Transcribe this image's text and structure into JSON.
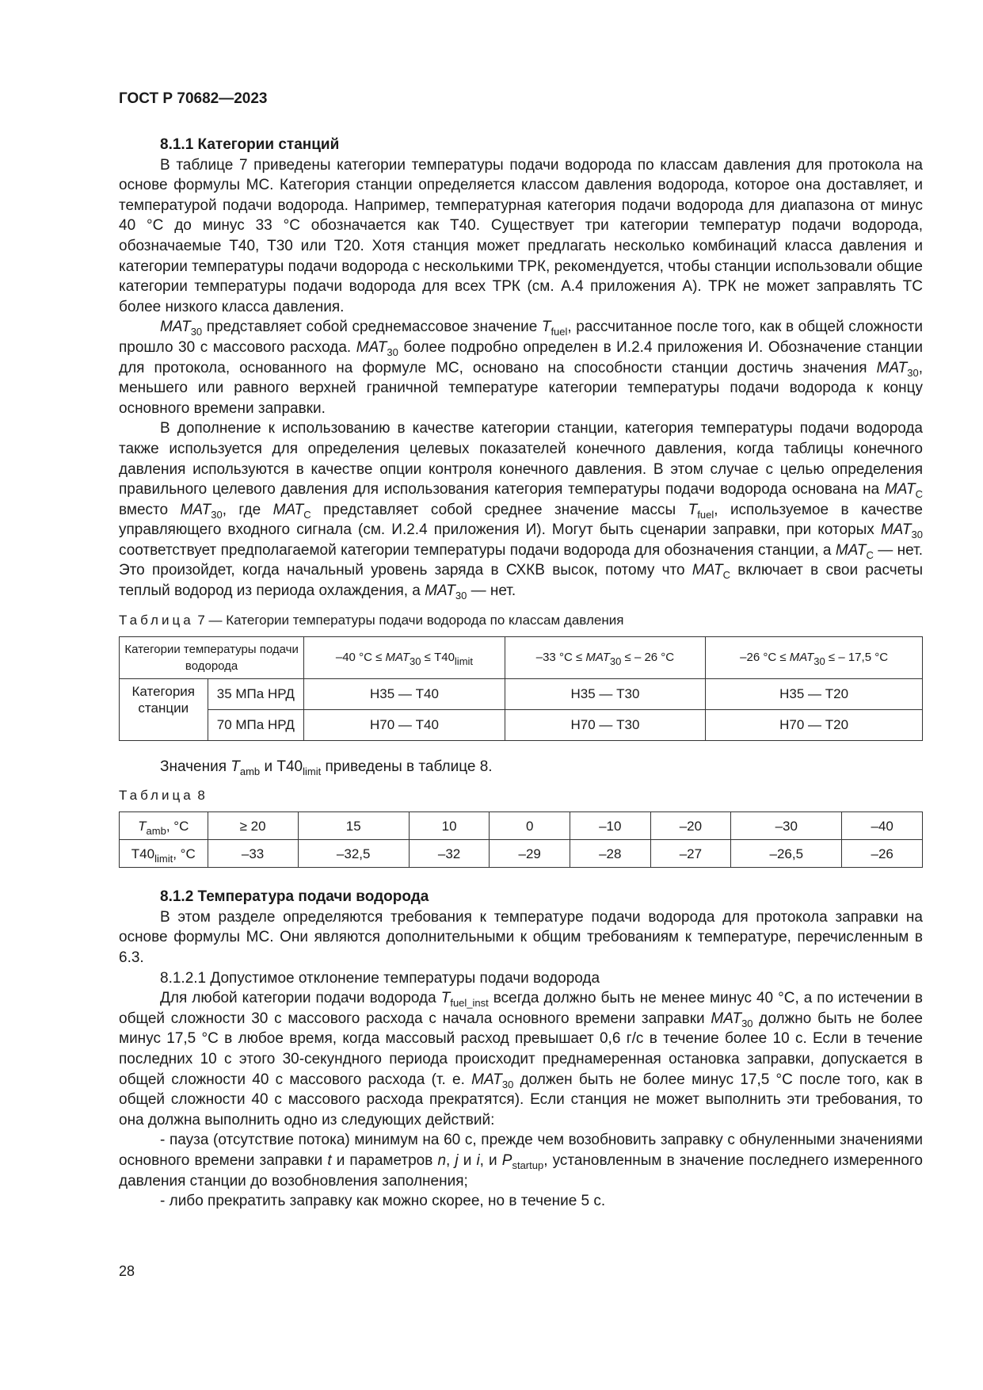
{
  "header": "ГОСТ Р 70682—2023",
  "page_number": "28",
  "sec1": {
    "title": "8.1.1 Категории станций",
    "paras": [
      [
        "В таблице 7 приведены категории температуры подачи водорода по классам давления для протокола на основе формулы МС. Категория станции определяется классом давления водорода, которое она доставляет, и температурой подачи водорода. Например, температурная категория подачи водорода для диапазона от минус 40 °С до минус 33 °С обозначается как Т40. Существует три категории температур подачи водорода, обозначаемые Т40, Т30 или Т20. Хотя станция может предлагать несколько комбинаций класса давления и категории температуры подачи водорода с несколькими ТРК, рекомендуется, чтобы станции использовали общие категории температуры подачи водорода для всех ТРК (см. А.4 приложения А). ТРК не может заправлять ТС более низкого класса давления."
      ],
      [
        {
          "i": "MAT",
          "s": "30"
        },
        " представляет собой среднемассовое значение ",
        {
          "i": "T",
          "si": "fuel"
        },
        ", рассчитанное после того, как в общей сложности прошло 30 с массового расхода. ",
        {
          "i": "MAT",
          "s": "30"
        },
        " более подробно определен в И.2.4 приложения И. Обозначение станции для протокола, основанного на формуле МС, основано на способности станции достичь значения ",
        {
          "i": "MAT",
          "s": "30"
        },
        ", меньшего или равного верхней граничной температуре категории температуры подачи водорода к концу основного времени заправки."
      ],
      [
        "В дополнение к использованию в качестве категории станции, категория температуры подачи водорода также используется для определения целевых показателей конечного давления, когда таблицы конечного давления используются в качестве опции контроля конечного давления. В этом случае с целью определения правильного целевого давления для использования категория температуры подачи водорода основана на ",
        {
          "i": "MAT",
          "s": "C"
        },
        " вместо ",
        {
          "i": "MAT",
          "s": "30"
        },
        ", где ",
        {
          "i": "MAT",
          "s": "C"
        },
        " представляет собой среднее значение массы ",
        {
          "i": "T",
          "si": "fuel"
        },
        ", используемое в качестве управляющего входного сигнала (см. И.2.4 приложения И). Могут быть сценарии заправки, при которых ",
        {
          "i": "MAT",
          "s": "30"
        },
        " соответствует предполагаемой категории температуры подачи водорода для обозначения станции, а ",
        {
          "i": "MAT",
          "s": "C"
        },
        " — нет. Это произойдет, когда начальный уровень заряда в СХКВ высок, потому что ",
        {
          "i": "MAT",
          "s": "C"
        },
        " включает в свои расчеты теплый водород из периода охлаждения, а ",
        {
          "i": "MAT",
          "s": "30"
        },
        " — нет."
      ]
    ]
  },
  "table7": {
    "caption_prefix": "Таблица",
    "caption_rest": " 7 — Категории температуры подачи водорода по классам давления",
    "head": [
      [
        "Категории температуры подачи водорода"
      ],
      [
        "–40 °С ≤ ",
        {
          "i": "MAT",
          "s": "30"
        },
        " ≤ Т40",
        {
          "si": "limit"
        }
      ],
      [
        "–33 °С ≤ ",
        {
          "i": "MAT",
          "s": "30"
        },
        " ≤ – 26 °С"
      ],
      [
        "–26 °С ≤ ",
        {
          "i": "MAT",
          "s": "30"
        },
        " ≤ – 17,5 °С"
      ]
    ],
    "row_label": "Категория станции",
    "rows": [
      {
        "class": "35 МПа НРД",
        "cells": [
          "Н35 — Т40",
          "Н35 — Т30",
          "Н35 — Т20"
        ]
      },
      {
        "class": "70 МПа НРД",
        "cells": [
          "Н70 — Т40",
          "Н70 — Т30",
          "Н70 — Т20"
        ]
      }
    ]
  },
  "note8": [
    "Значения ",
    {
      "i": "T",
      "si": "amb"
    },
    " и Т40",
    {
      "si": "limit"
    },
    " приведены в таблице 8."
  ],
  "table8": {
    "caption_prefix": "Таблица",
    "caption_rest": " 8",
    "row1_label": [
      {
        "i": "T",
        "si": "amb"
      },
      ", °С"
    ],
    "row1": [
      "≥ 20",
      "15",
      "10",
      "0",
      "–10",
      "–20",
      "–30",
      "–40"
    ],
    "row2_label": [
      "Т40",
      {
        "si": "limit"
      },
      ", °С"
    ],
    "row2": [
      "–33",
      "–32,5",
      "–32",
      "–29",
      "–28",
      "–27",
      "–26,5",
      "–26"
    ]
  },
  "sec2": {
    "title": "8.1.2 Температура подачи водорода",
    "paras": [
      [
        "В этом разделе определяются требования к температуре подачи водорода для протокола заправки на основе формулы МС. Они являются дополнительными к общим требованиям к температуре, перечисленным в 6.3."
      ],
      [
        "8.1.2.1 Допустимое отклонение температуры подачи водорода"
      ],
      [
        "Для любой категории подачи водорода ",
        {
          "i": "T",
          "si": "fuel_inst"
        },
        " всегда должно быть не менее минус 40 °С, а по истечении в общей сложности 30 с массового расхода с начала основного времени заправки ",
        {
          "i": "MAT",
          "s": "30"
        },
        " должно быть не более минус 17,5 °С в любое время, когда массовый расход превышает 0,6 г/с в течение более 10 с. Если в течение последних 10 с этого 30-секундного периода происходит преднамеренная остановка заправки, допускается в общей сложности 40 с массового расхода (т. е. ",
        {
          "i": "MAT",
          "s": "30"
        },
        " должен быть не более минус 17,5 °С после того, как в общей сложности 40 с массового расхода прекратятся). Если станция не может выполнить эти требования, то она должна выполнить одно из следующих действий:"
      ],
      [
        "- пауза (отсутствие потока) минимум на 60 с, прежде чем возобновить заправку с обнуленными значениями основного времени заправки ",
        {
          "i": "t"
        },
        " и параметров ",
        {
          "i": "n"
        },
        ", ",
        {
          "i": "j"
        },
        " и ",
        {
          "i": "i"
        },
        ", и ",
        {
          "i": "P",
          "si": "startup"
        },
        ", установленным в значение последнего измеренного давления станции до возобновления заполнения;"
      ],
      [
        "- либо прекратить заправку как можно скорее, но в течение 5 с."
      ]
    ]
  }
}
